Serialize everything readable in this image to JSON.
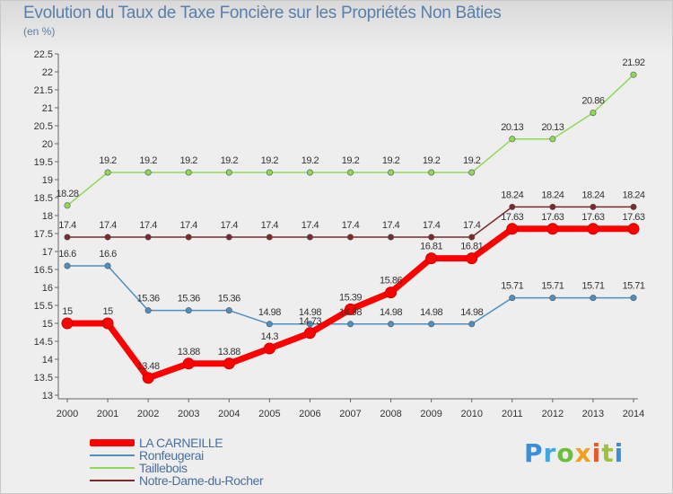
{
  "chart_data": {
    "type": "line",
    "title": "Evolution du Taux de Taxe Foncière sur les Propriétés Non Bâties",
    "subtitle": "(en %)",
    "x": [
      "2000",
      "2001",
      "2002",
      "2003",
      "2004",
      "2005",
      "2006",
      "2007",
      "2008",
      "2009",
      "2010",
      "2011",
      "2012",
      "2013",
      "2014"
    ],
    "ylim": [
      13,
      22.5
    ],
    "yticks": [
      "13",
      "13.5",
      "14",
      "14.5",
      "15",
      "15.5",
      "16",
      "16.5",
      "17",
      "17.5",
      "18",
      "18.5",
      "19",
      "19.5",
      "20",
      "20.5",
      "21",
      "21.5",
      "22",
      "22.5"
    ],
    "grid": false,
    "legend_position": "bottom-left",
    "series": [
      {
        "name": "LA CARNEILLE",
        "color": "#ff0000",
        "values": [
          15,
          15,
          13.48,
          13.88,
          13.88,
          14.3,
          14.73,
          15.39,
          15.86,
          16.81,
          16.81,
          17.63,
          17.63,
          17.63,
          17.63
        ],
        "labels": [
          "15",
          "15",
          "13.48",
          "13.88",
          "13.88",
          "14.3",
          "14.73",
          "15.39",
          "15.86",
          "16.81",
          "16.81",
          "17.63",
          "17.63",
          "17.63",
          "17.63"
        ]
      },
      {
        "name": "Ronfeugerai",
        "color": "#4f8fc0",
        "values": [
          16.6,
          16.6,
          15.36,
          15.36,
          15.36,
          14.98,
          14.98,
          14.98,
          14.98,
          14.98,
          14.98,
          15.71,
          15.71,
          15.71,
          15.71
        ],
        "labels": [
          "16.6",
          "16.6",
          "15.36",
          "15.36",
          "15.36",
          "14.98",
          "14.98",
          "14.98",
          "14.98",
          "14.98",
          "14.98",
          "15.71",
          "15.71",
          "15.71",
          "15.71"
        ]
      },
      {
        "name": "Taillebois",
        "color": "#8fd85a",
        "values": [
          18.28,
          19.2,
          19.2,
          19.2,
          19.2,
          19.2,
          19.2,
          19.2,
          19.2,
          19.2,
          19.2,
          20.13,
          20.13,
          20.86,
          21.92
        ],
        "labels": [
          "18.28",
          "19.2",
          "19.2",
          "19.2",
          "19.2",
          "19.2",
          "19.2",
          "19.2",
          "19.2",
          "19.2",
          "19.2",
          "20.13",
          "20.13",
          "20.86",
          "21.92"
        ]
      },
      {
        "name": "Notre-Dame-du-Rocher",
        "color": "#7a2a2a",
        "values": [
          17.4,
          17.4,
          17.4,
          17.4,
          17.4,
          17.4,
          17.4,
          17.4,
          17.4,
          17.4,
          17.4,
          18.24,
          18.24,
          18.24,
          18.24
        ],
        "labels": [
          "17.4",
          "17.4",
          "17.4",
          "17.4",
          "17.4",
          "17.4",
          "17.4",
          "17.4",
          "17.4",
          "17.4",
          "17.4",
          "18.24",
          "18.24",
          "18.24",
          "18.24"
        ]
      }
    ]
  },
  "logo": {
    "letters": [
      "P",
      "r",
      "o",
      "x",
      "i",
      "t",
      "i"
    ]
  }
}
